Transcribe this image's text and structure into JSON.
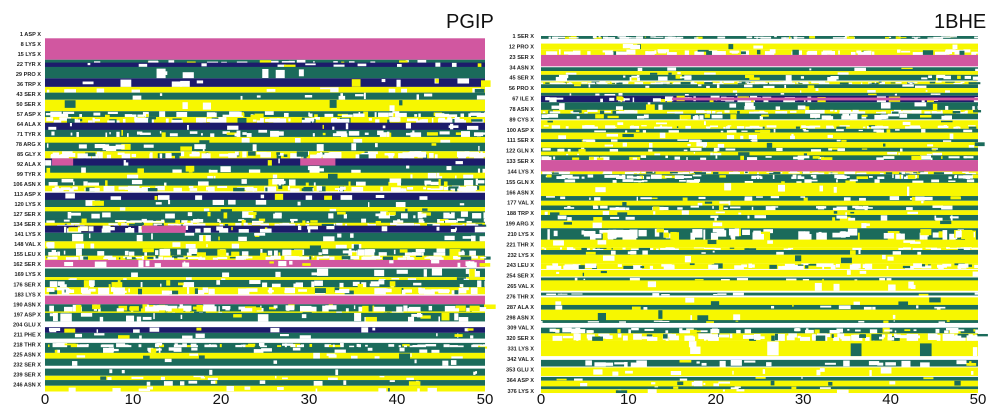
{
  "colors": {
    "pink": "#d157a0",
    "navy": "#1c1b6b",
    "green": "#1b6b5b",
    "yellow": "#f7f700",
    "white": "#ffffff"
  },
  "chart_data": [
    {
      "type": "heatmap",
      "title": "PGIP",
      "x_ticks": [
        "0",
        "10",
        "20",
        "30",
        "40",
        "50"
      ],
      "xlim": [
        0,
        50
      ],
      "residue_range": [
        1,
        250
      ],
      "y_labels": [
        "1 ASP X",
        "8 LYS X",
        "15 LYS X",
        "22 TYR X",
        "29 PRO X",
        "36 TRP X",
        "43 SER X",
        "50 SER X",
        "57 ASP X",
        "64 ALA X",
        "71 TYR X",
        "78 ARG X",
        "85 GLY X",
        "92 ALA X",
        "99 TYR X",
        "106 ASN X",
        "113 ASP X",
        "120 LYS X",
        "127 SER X",
        "134 SER X",
        "141 LYS X",
        "148 VAL X",
        "155 LEU X",
        "162 SER X",
        "169 LYS X",
        "176 SER X",
        "183 LYS X",
        "190 ASN X",
        "197 ASP X",
        "204 GLU X",
        "211 PHE X",
        "218 THR X",
        "225 ASN X",
        "232 SER X",
        "239 SER X",
        "246 ASN X"
      ],
      "bands": [
        [
          4,
          18,
          "pink",
          1
        ],
        [
          19,
          21,
          "green",
          0.8
        ],
        [
          21,
          24,
          "navy",
          0.9
        ],
        [
          24,
          31,
          "green",
          0.95
        ],
        [
          32,
          37,
          "navy",
          0.9
        ],
        [
          38,
          41,
          "yellow",
          0.9
        ],
        [
          42,
          46,
          "green",
          0.9
        ],
        [
          47,
          54,
          "yellow",
          0.95
        ],
        [
          55,
          59,
          "green",
          0.5
        ],
        [
          59,
          63,
          "yellow",
          0.3
        ],
        [
          63,
          68,
          "navy",
          0.9
        ],
        [
          68,
          72,
          "green",
          0.6
        ],
        [
          73,
          77,
          "yellow",
          0.95
        ],
        [
          77,
          82,
          "green",
          0.85
        ],
        [
          83,
          87,
          "yellow",
          0.15
        ],
        [
          88,
          93,
          "navy",
          0.95
        ],
        [
          93,
          98,
          "green",
          0.85
        ],
        [
          98,
          102,
          "yellow",
          0.9
        ],
        [
          102,
          107,
          "green",
          0.75
        ],
        [
          107,
          110,
          "yellow",
          0.4
        ],
        [
          112,
          117,
          "navy",
          0.9
        ],
        [
          117,
          121,
          "green",
          0.9
        ],
        [
          122,
          125,
          "yellow",
          0.95
        ],
        [
          125,
          130,
          "green",
          0.7
        ],
        [
          130,
          133,
          "green",
          0.6
        ],
        [
          133,
          135,
          "yellow",
          0.4
        ],
        [
          135,
          139,
          "navy",
          0.7
        ],
        [
          140,
          145,
          "green",
          0.85
        ],
        [
          146,
          151,
          "yellow",
          0.9
        ],
        [
          151,
          156,
          "green",
          0.5
        ],
        [
          156,
          158,
          "yellow",
          0.3
        ],
        [
          159,
          163,
          "pink",
          0.85
        ],
        [
          165,
          170,
          "green",
          0.9
        ],
        [
          171,
          173,
          "yellow",
          0.9
        ],
        [
          173,
          178,
          "green",
          0.7
        ],
        [
          178,
          182,
          "yellow",
          0.5
        ],
        [
          184,
          189,
          "pink",
          1
        ],
        [
          190,
          195,
          "green",
          0.3
        ],
        [
          195,
          196,
          "yellow",
          0.9
        ],
        [
          196,
          201,
          "green",
          0.8
        ],
        [
          206,
          209,
          "navy",
          0.9
        ],
        [
          210,
          213,
          "green",
          0.9
        ],
        [
          217,
          220,
          "green",
          0.3
        ],
        [
          220,
          223,
          "green",
          0.8
        ],
        [
          224,
          228,
          "yellow",
          0.9
        ],
        [
          228,
          232,
          "green",
          0.95
        ],
        [
          235,
          239,
          "green",
          0.95
        ],
        [
          240,
          242,
          "yellow",
          0.9
        ],
        [
          243,
          246,
          "green",
          0.9
        ],
        [
          247,
          250,
          "yellow",
          0.9
        ]
      ],
      "patches": [
        [
          88,
          92,
          0.8,
          3.2,
          "pink"
        ],
        [
          135,
          139,
          11,
          16,
          "pink"
        ],
        [
          88,
          92,
          29,
          33,
          "pink"
        ]
      ]
    },
    {
      "type": "heatmap",
      "title": "1BHE",
      "x_ticks": [
        "0",
        "10",
        "20",
        "30",
        "40",
        "50"
      ],
      "xlim": [
        0,
        50
      ],
      "residue_range": [
        1,
        377
      ],
      "y_labels": [
        "1 SER X",
        "12 PRO X",
        "23 SER X",
        "34 ASN X",
        "45 SER X",
        "56 PRO X",
        "67 ILE X",
        "78 ASN X",
        "89 CYS X",
        "100 ASP X",
        "111 SER X",
        "122 GLN X",
        "133 SER X",
        "144 LYS X",
        "155 GLN X",
        "166 ASN X",
        "177 VAL X",
        "188 TRP X",
        "199 ARG X",
        "210 LYS X",
        "221 THR X",
        "232 LYS X",
        "243 LEU X",
        "254 SER X",
        "265 VAL X",
        "276 THR X",
        "287 ALA X",
        "298 ASN X",
        "309 VAL X",
        "320 SER X",
        "331 LYS X",
        "342 VAL X",
        "353 GLU X",
        "364 ASP X",
        "376 LYS X"
      ],
      "bands": [
        [
          1,
          3,
          "green",
          0.5
        ],
        [
          9,
          14,
          "yellow",
          0.95
        ],
        [
          15,
          20,
          "yellow",
          0.4
        ],
        [
          21,
          32,
          "pink",
          1
        ],
        [
          34,
          37,
          "green",
          0.95
        ],
        [
          38,
          41,
          "yellow",
          0.95
        ],
        [
          42,
          47,
          "green",
          0.75
        ],
        [
          49,
          51,
          "yellow",
          0.2
        ],
        [
          52,
          55,
          "green",
          0.9
        ],
        [
          56,
          60,
          "yellow",
          0.95
        ],
        [
          61,
          63,
          "green",
          0.9
        ],
        [
          64,
          70,
          "navy",
          0.6
        ],
        [
          71,
          79,
          "green",
          0.85
        ],
        [
          79,
          83,
          "yellow",
          0.4
        ],
        [
          83,
          88,
          "green",
          0.7
        ],
        [
          90,
          94,
          "yellow",
          0.95
        ],
        [
          95,
          98,
          "yellow",
          0.5
        ],
        [
          99,
          102,
          "green",
          0.8
        ],
        [
          103,
          109,
          "yellow",
          0.9
        ],
        [
          110,
          112,
          "green",
          0.9
        ],
        [
          113,
          119,
          "yellow",
          0.9
        ],
        [
          119,
          122,
          "green",
          0.8
        ],
        [
          123,
          127,
          "yellow",
          0.9
        ],
        [
          127,
          131,
          "green",
          0.7
        ],
        [
          132,
          143,
          "pink",
          1
        ],
        [
          144,
          146,
          "yellow",
          0.4
        ],
        [
          147,
          151,
          "green",
          0.5
        ],
        [
          152,
          156,
          "green",
          0.8
        ],
        [
          156,
          169,
          "yellow",
          0.95
        ],
        [
          170,
          174,
          "green",
          0.8
        ],
        [
          175,
          179,
          "yellow",
          0.95
        ],
        [
          180,
          184,
          "green",
          0.7
        ],
        [
          185,
          189,
          "yellow",
          0.9
        ],
        [
          190,
          195,
          "green",
          0.85
        ],
        [
          196,
          203,
          "yellow",
          0.95
        ],
        [
          204,
          216,
          "green",
          0.35
        ],
        [
          216,
          223,
          "yellow",
          0.95
        ],
        [
          224,
          226,
          "yellow",
          0.6
        ],
        [
          227,
          231,
          "green",
          0.9
        ],
        [
          232,
          240,
          "yellow",
          0.95
        ],
        [
          241,
          246,
          "yellow",
          0.4
        ],
        [
          248,
          254,
          "yellow",
          0.95
        ],
        [
          256,
          259,
          "green",
          0.9
        ],
        [
          259,
          269,
          "yellow",
          0.95
        ],
        [
          272,
          274,
          "green",
          0.9
        ],
        [
          277,
          285,
          "yellow",
          0.95
        ],
        [
          285,
          289,
          "green",
          0.9
        ],
        [
          290,
          301,
          "yellow",
          0.95
        ],
        [
          301,
          303,
          "green",
          0.9
        ],
        [
          309,
          314,
          "green",
          0.6
        ],
        [
          315,
          322,
          "yellow",
          0.15
        ],
        [
          323,
          338,
          "yellow",
          0.95
        ],
        [
          343,
          349,
          "green",
          0.8
        ],
        [
          351,
          359,
          "yellow",
          0.9
        ],
        [
          361,
          364,
          "green",
          0.95
        ],
        [
          365,
          370,
          "yellow",
          0.9
        ],
        [
          371,
          373,
          "green",
          0.95
        ],
        [
          374,
          377,
          "yellow",
          0.95
        ]
      ],
      "patches": [
        [
          66,
          68,
          15,
          50,
          "pink"
        ]
      ]
    }
  ]
}
